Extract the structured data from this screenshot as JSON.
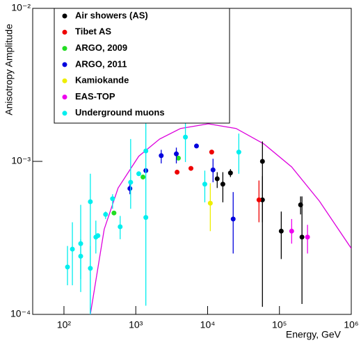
{
  "chart_data": {
    "type": "scatter",
    "y_label": "Anisotropy Amplitude",
    "x_label": "Energy, GeV",
    "xscale": "log",
    "yscale": "log",
    "xlim": [
      36.7,
      1000000
    ],
    "ylim": [
      0.0001,
      0.01
    ],
    "xticks": [
      {
        "value": 100,
        "label": "10²"
      },
      {
        "value": 1000,
        "label": "10³"
      },
      {
        "value": 10000,
        "label": "10⁴"
      },
      {
        "value": 100000,
        "label": "10⁵"
      },
      {
        "value": 1000000,
        "label": "10⁶"
      }
    ],
    "yticks": [
      {
        "value": 0.0001,
        "label": "10⁻⁴"
      },
      {
        "value": 0.001,
        "label": "10⁻³"
      },
      {
        "value": 0.01,
        "label": "10⁻²"
      }
    ],
    "series": [
      {
        "name": "Air showers (AS)",
        "color": "#000000",
        "x": [
          13600,
          16300,
          20800,
          58000,
          58000,
          106000,
          197000,
          206000
        ],
        "values": [
          0.00077,
          0.00071,
          0.00084,
          0.001,
          0.00056,
          0.00035,
          0.00052,
          0.00032
        ],
        "err_low": [
          0.00067,
          0.00054,
          0.00079,
          0.000112,
          0.0004,
          0.00023,
          0.00045,
          0.000117
        ],
        "err_high": [
          0.00085,
          0.00085,
          0.00089,
          0.00135,
          0.0008,
          0.00047,
          0.00059,
          0.00059
        ]
      },
      {
        "name": "Tibet AS",
        "color": "#ee0000",
        "x": [
          3760,
          5860,
          11400,
          51900
        ],
        "values": [
          0.00085,
          0.0009,
          0.00115,
          0.00056
        ],
        "err_low": [
          null,
          null,
          null,
          0.0004
        ],
        "err_high": [
          null,
          null,
          null,
          0.00075
        ]
      },
      {
        "name": "ARGO, 2009",
        "color": "#22dd22",
        "x": [
          497,
          1260,
          3920
        ],
        "values": [
          0.00046,
          0.00079,
          0.00105
        ],
        "err_low": [
          null,
          null,
          null
        ],
        "err_high": [
          null,
          null,
          null
        ]
      },
      {
        "name": "ARGO, 2011",
        "color": "#0000dd",
        "x": [
          828,
          1380,
          2260,
          3670,
          7000,
          11900,
          22700
        ],
        "values": [
          0.000665,
          0.00087,
          0.00109,
          0.00112,
          0.00126,
          0.00088,
          0.00042
        ],
        "err_low": [
          0.00061,
          null,
          0.00097,
          0.00097,
          null,
          0.00073,
          0.00025
        ],
        "err_high": [
          0.00072,
          null,
          0.00119,
          0.00123,
          null,
          0.00104,
          0.00063
        ]
      },
      {
        "name": "Kamiokande",
        "color": "#eeee00",
        "x": [
          10900
        ],
        "values": [
          0.000533
        ],
        "err_low": [
          0.00035
        ],
        "err_high": [
          0.00072
        ]
      },
      {
        "name": "EAS-TOP",
        "color": "#ee00ee",
        "x": [
          148000,
          246000
        ],
        "values": [
          0.00035,
          0.00032
        ],
        "err_low": [
          0.00029,
          0.00025
        ],
        "err_high": [
          0.00042,
          0.000385
        ]
      },
      {
        "name": "Underground muons",
        "color": "#00eeee",
        "x": [
          112,
          131,
          171,
          171,
          233,
          233,
          278,
          297,
          380,
          475,
          606,
          848,
          1100,
          1380,
          1380,
          4910,
          9140,
          27200
        ],
        "values": [
          0.000204,
          0.000267,
          0.00029,
          0.00024,
          0.000545,
          0.0002,
          0.00032,
          0.000327,
          0.00045,
          0.00057,
          0.000374,
          0.00073,
          0.00083,
          0.00117,
          0.00043,
          0.00144,
          0.00071,
          0.00115
        ],
        "err_low": [
          0.000155,
          0.000155,
          0.00017,
          0.00014,
          0.0001,
          0.000102,
          0.00025,
          null,
          0.00042,
          0.00049,
          0.00031,
          0.00049,
          null,
          0.00079,
          0.000114,
          0.00099,
          0.00054,
          0.00083
        ],
        "err_high": [
          0.00028,
          0.0004,
          0.00052,
          0.00031,
          0.00083,
          0.00028,
          0.00041,
          null,
          0.00047,
          0.00061,
          0.00044,
          0.0014,
          null,
          0.00191,
          0.00079,
          0.00191,
          0.00087,
          0.00152
        ]
      }
    ],
    "curve": {
      "color": "#dd00dd",
      "x": [
        233,
        363,
        568,
        1100,
        2150,
        4200,
        10200,
        24900,
        60700,
        148000,
        360000,
        1000000
      ],
      "values": [
        0.0001,
        0.00036,
        0.00067,
        0.00108,
        0.0014,
        0.00164,
        0.00176,
        0.00164,
        0.0013,
        0.00092,
        0.00055,
        0.00027
      ]
    }
  }
}
